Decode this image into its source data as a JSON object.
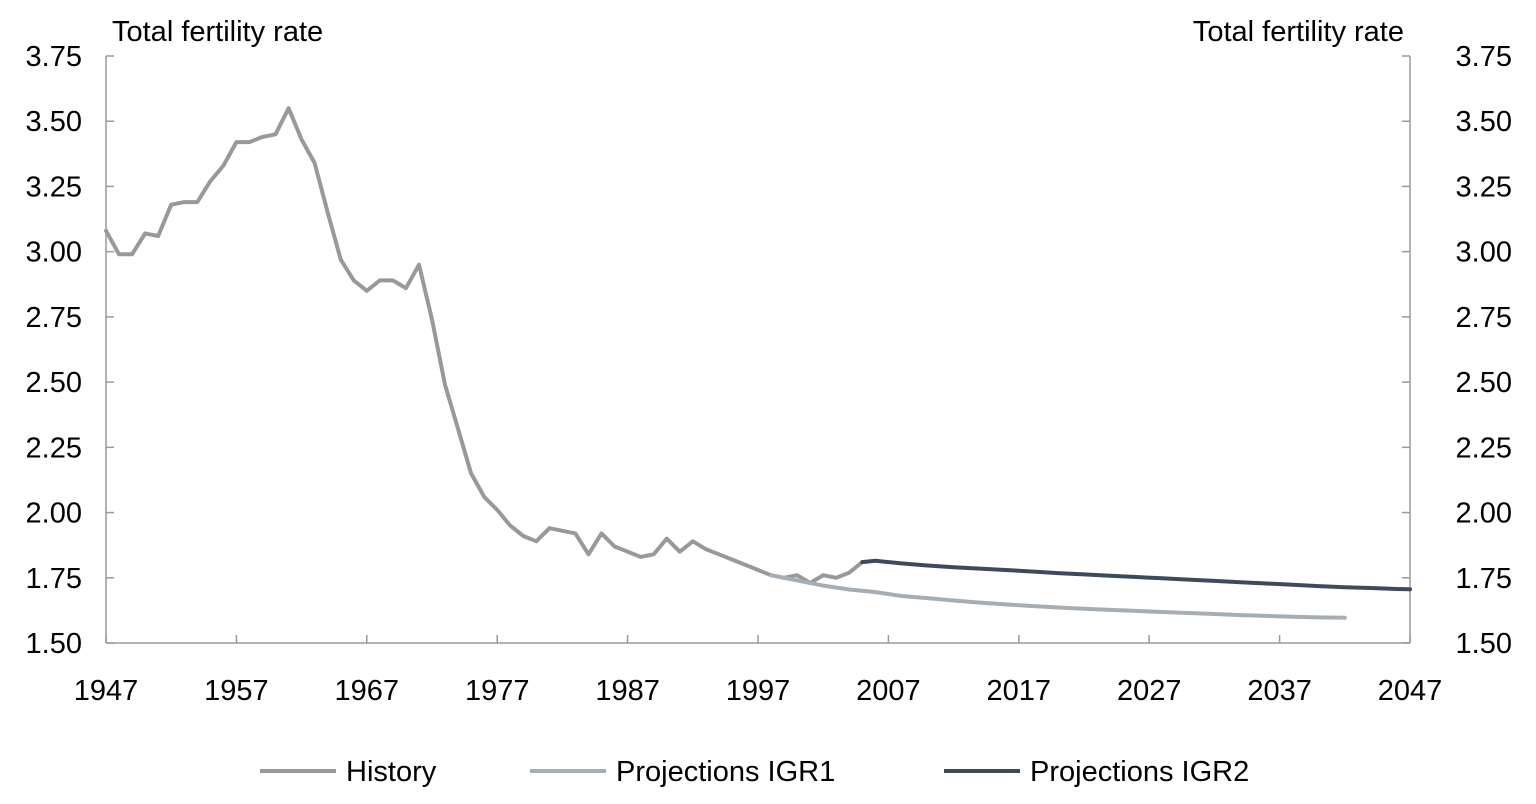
{
  "chart_data": {
    "type": "line",
    "left_axis_title": "Total fertility rate",
    "right_axis_title": "Total fertility rate",
    "xlim": [
      1947,
      2047
    ],
    "ylim": [
      1.5,
      3.75
    ],
    "x_ticks": [
      "1947",
      "1957",
      "1967",
      "1977",
      "1987",
      "1997",
      "2007",
      "2017",
      "2027",
      "2037",
      "2047"
    ],
    "y_ticks": [
      "1.50",
      "1.75",
      "2.00",
      "2.25",
      "2.50",
      "2.75",
      "3.00",
      "3.25",
      "3.50",
      "3.75"
    ],
    "grid": false,
    "legend_position": "bottom",
    "series": [
      {
        "name": "History",
        "color": "#999999",
        "x": [
          1947,
          1948,
          1949,
          1950,
          1951,
          1952,
          1953,
          1954,
          1955,
          1956,
          1957,
          1958,
          1959,
          1960,
          1961,
          1962,
          1963,
          1964,
          1965,
          1966,
          1967,
          1968,
          1969,
          1970,
          1971,
          1972,
          1973,
          1974,
          1975,
          1976,
          1977,
          1978,
          1979,
          1980,
          1981,
          1982,
          1983,
          1984,
          1985,
          1986,
          1987,
          1988,
          1989,
          1990,
          1991,
          1992,
          1993,
          1994,
          1995,
          1996,
          1997,
          1998,
          1999,
          2000,
          2001,
          2002,
          2003,
          2004,
          2005
        ],
        "y": [
          3.08,
          2.99,
          2.99,
          3.07,
          3.06,
          3.18,
          3.19,
          3.19,
          3.27,
          3.33,
          3.42,
          3.42,
          3.44,
          3.45,
          3.55,
          3.43,
          3.34,
          3.15,
          2.97,
          2.89,
          2.85,
          2.89,
          2.89,
          2.86,
          2.95,
          2.74,
          2.49,
          2.32,
          2.15,
          2.06,
          2.01,
          1.95,
          1.91,
          1.89,
          1.94,
          1.93,
          1.92,
          1.84,
          1.92,
          1.87,
          1.85,
          1.83,
          1.84,
          1.9,
          1.85,
          1.89,
          1.86,
          1.84,
          1.82,
          1.8,
          1.78,
          1.76,
          1.75,
          1.76,
          1.73,
          1.76,
          1.75,
          1.77,
          1.81
        ]
      },
      {
        "name": "Projections IGR1",
        "color": "#a5adb5",
        "x": [
          1998,
          2000,
          2002,
          2004,
          2006,
          2008,
          2010,
          2012,
          2014,
          2016,
          2018,
          2020,
          2022,
          2024,
          2026,
          2028,
          2030,
          2032,
          2034,
          2036,
          2038,
          2040,
          2042
        ],
        "y": [
          1.76,
          1.74,
          1.72,
          1.705,
          1.695,
          1.68,
          1.672,
          1.663,
          1.655,
          1.648,
          1.642,
          1.636,
          1.631,
          1.627,
          1.623,
          1.619,
          1.615,
          1.611,
          1.607,
          1.604,
          1.601,
          1.598,
          1.597
        ]
      },
      {
        "name": "Projections IGR2",
        "color": "#3c4a5c",
        "x": [
          2005,
          2006,
          2007,
          2008,
          2010,
          2012,
          2014,
          2016,
          2018,
          2020,
          2022,
          2024,
          2026,
          2028,
          2030,
          2032,
          2034,
          2036,
          2038,
          2040,
          2042,
          2044,
          2046,
          2047
        ],
        "y": [
          1.81,
          1.815,
          1.81,
          1.805,
          1.797,
          1.79,
          1.785,
          1.78,
          1.774,
          1.768,
          1.763,
          1.758,
          1.753,
          1.748,
          1.743,
          1.738,
          1.733,
          1.728,
          1.723,
          1.718,
          1.714,
          1.711,
          1.707,
          1.706
        ]
      }
    ]
  }
}
